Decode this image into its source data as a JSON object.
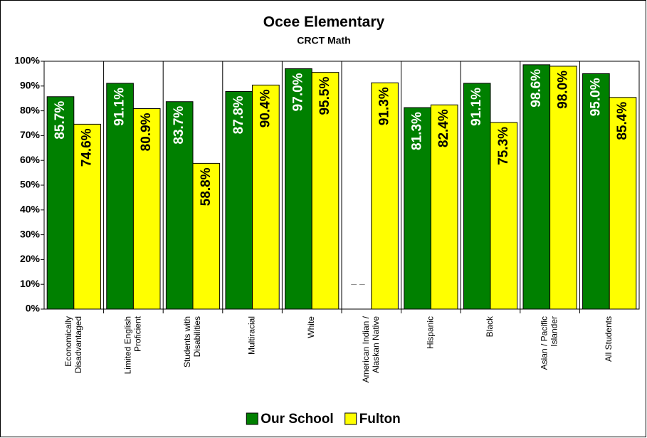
{
  "chart_data": {
    "type": "bar",
    "title": "Ocee Elementary",
    "subtitle": "CRCT Math",
    "categories": [
      "Economically Disadvantaged",
      "Limited English Proficient",
      "Students with Disabilities",
      "Multiracial",
      "White",
      "American Indian / Alaskan Native",
      "Hispanic",
      "Black",
      "Asian / Pacific Islander",
      "All Students"
    ],
    "series": [
      {
        "name": "Our School",
        "color": "#008000",
        "values": [
          85.7,
          91.1,
          83.7,
          87.8,
          97.0,
          null,
          81.3,
          91.1,
          98.6,
          95.0
        ],
        "value_labels": [
          "85.7%",
          "91.1%",
          "83.7%",
          "87.8%",
          "97.0%",
          "– –",
          "81.3%",
          "91.1%",
          "98.6%",
          "95.0%"
        ]
      },
      {
        "name": "Fulton",
        "color": "#ffff00",
        "values": [
          74.6,
          80.9,
          58.8,
          90.4,
          95.5,
          91.3,
          82.4,
          75.3,
          98.0,
          85.4
        ],
        "value_labels": [
          "74.6%",
          "80.9%",
          "58.8%",
          "90.4%",
          "95.5%",
          "91.3%",
          "82.4%",
          "75.3%",
          "98.0%",
          "85.4%"
        ]
      }
    ],
    "ylim": [
      0,
      100
    ],
    "yticks": [
      {
        "value": 0,
        "label": "0%"
      },
      {
        "value": 10,
        "label": "10%"
      },
      {
        "value": 20,
        "label": "20%"
      },
      {
        "value": 30,
        "label": "30%"
      },
      {
        "value": 40,
        "label": "40%"
      },
      {
        "value": 50,
        "label": "50%"
      },
      {
        "value": 60,
        "label": "60%"
      },
      {
        "value": 70,
        "label": "70%"
      },
      {
        "value": 80,
        "label": "80%"
      },
      {
        "value": 90,
        "label": "90%"
      },
      {
        "value": 100,
        "label": "100%"
      }
    ],
    "legend": "bottom"
  }
}
